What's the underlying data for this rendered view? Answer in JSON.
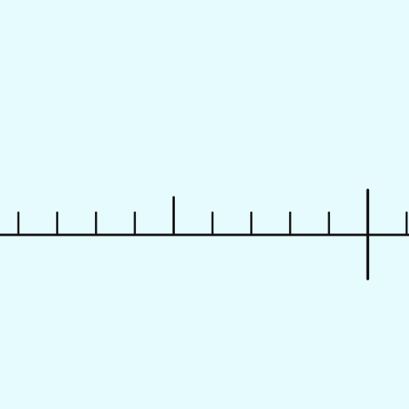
{
  "background_color": "#e6fbfe",
  "stroke_color": "#111111",
  "number_line": {
    "tick_count": 11,
    "tick_kinds": [
      "minor",
      "minor",
      "minor",
      "minor",
      "major",
      "minor",
      "minor",
      "minor",
      "minor",
      "marker",
      "minor"
    ],
    "extends_past_left_edge": true,
    "extends_past_right_edge": true
  }
}
